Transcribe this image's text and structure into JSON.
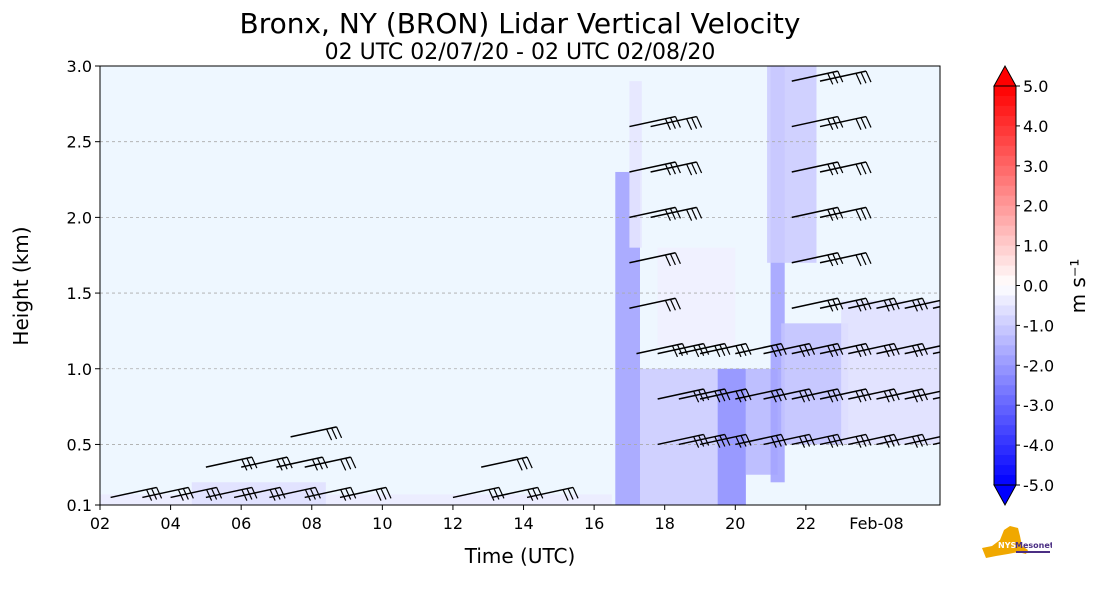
{
  "chart_data": {
    "type": "heatmap",
    "title": "Bronx, NY (BRON) Lidar Vertical Velocity",
    "subtitle": "02 UTC 02/07/20 - 02 UTC 02/08/20",
    "xlabel": "Time (UTC)",
    "ylabel": "Height (km)",
    "xlim": [
      2,
      25.8
    ],
    "ylim": [
      0.1,
      3.0
    ],
    "x_ticks": [
      2,
      4,
      6,
      8,
      10,
      12,
      14,
      16,
      18,
      20,
      22
    ],
    "x_tick_labels": [
      "02",
      "04",
      "06",
      "08",
      "10",
      "12",
      "14",
      "16",
      "18",
      "20",
      "22"
    ],
    "date_label": {
      "x": 24.0,
      "text": "Feb-08"
    },
    "y_ticks": [
      0.1,
      0.5,
      1.0,
      1.5,
      2.0,
      2.5,
      3.0
    ],
    "y_tick_labels": [
      "0.1",
      "0.5",
      "1.0",
      "1.5",
      "2.0",
      "2.5",
      "3.0"
    ],
    "grid": "horizontal dashed",
    "colorbar": {
      "label": "m s⁻¹",
      "range": [
        -5.0,
        5.0
      ],
      "ticks": [
        5.0,
        4.0,
        3.0,
        2.0,
        1.0,
        0.0,
        -1.0,
        -2.0,
        -3.0,
        -4.0,
        -5.0
      ],
      "tick_labels": [
        "5.0",
        "4.0",
        "3.0",
        "2.0",
        "1.0",
        "0.0",
        "-1.0",
        "-2.0",
        "-3.0",
        "-4.0",
        "-5.0"
      ],
      "colors": {
        "negative": "#0000ff",
        "zero": "#ffffff",
        "positive": "#ff0000"
      }
    },
    "background_color": "#eef7ff",
    "regions": [
      {
        "x": [
          2.0,
          16.5
        ],
        "y": [
          0.1,
          0.17
        ],
        "value": -0.4
      },
      {
        "x": [
          4.6,
          8.4
        ],
        "y": [
          0.1,
          0.25
        ],
        "value": -0.6
      },
      {
        "x": [
          16.6,
          17.3
        ],
        "y": [
          0.1,
          2.3
        ],
        "value": -1.8
      },
      {
        "x": [
          17.0,
          17.35
        ],
        "y": [
          1.8,
          2.9
        ],
        "value": -0.5
      },
      {
        "x": [
          17.3,
          19.5
        ],
        "y": [
          0.1,
          1.0
        ],
        "value": -1.0
      },
      {
        "x": [
          19.5,
          20.3
        ],
        "y": [
          0.1,
          1.0
        ],
        "value": -2.2
      },
      {
        "x": [
          20.3,
          21.2
        ],
        "y": [
          0.3,
          1.0
        ],
        "value": -1.4
      },
      {
        "x": [
          21.0,
          21.4
        ],
        "y": [
          0.25,
          3.0
        ],
        "value": -1.8
      },
      {
        "x": [
          20.9,
          22.3
        ],
        "y": [
          1.7,
          3.0
        ],
        "value": -1.0
      },
      {
        "x": [
          21.3,
          23.2
        ],
        "y": [
          0.5,
          1.3
        ],
        "value": -1.2
      },
      {
        "x": [
          23.0,
          25.8
        ],
        "y": [
          0.5,
          1.45
        ],
        "value": -0.6
      },
      {
        "x": [
          17.8,
          20.0
        ],
        "y": [
          1.15,
          1.8
        ],
        "value": -0.3
      }
    ],
    "wind_barb_rows": [
      {
        "y": 0.15,
        "x": [
          2.3,
          3.2,
          4.0,
          5.0,
          5.8,
          6.8,
          7.8,
          8.8,
          12.0,
          13.1,
          14.1
        ]
      },
      {
        "y": 0.35,
        "x": [
          5.0,
          6.0,
          7.0,
          7.8,
          12.8
        ]
      },
      {
        "y": 0.55,
        "x": [
          7.4
        ]
      },
      {
        "y": 0.5,
        "x": [
          17.8,
          18.4,
          19.0,
          20.0,
          20.8,
          21.6,
          22.4,
          23.2,
          24.0,
          24.8,
          25.6
        ]
      },
      {
        "y": 0.8,
        "x": [
          17.8,
          18.4,
          19.0,
          20.0,
          20.8,
          21.6,
          22.4,
          23.2,
          24.0,
          24.8,
          25.6
        ]
      },
      {
        "y": 1.1,
        "x": [
          17.2,
          17.8,
          18.4,
          19.0,
          20.0,
          20.8,
          21.6,
          22.4,
          23.2,
          24.0,
          24.8,
          25.6
        ]
      },
      {
        "y": 1.4,
        "x": [
          17.0,
          21.6,
          22.4,
          23.2,
          24.0,
          24.8,
          25.6
        ]
      },
      {
        "y": 1.7,
        "x": [
          17.0,
          21.6,
          22.4
        ]
      },
      {
        "y": 2.0,
        "x": [
          17.0,
          17.6,
          21.6,
          22.4
        ]
      },
      {
        "y": 2.3,
        "x": [
          17.0,
          17.6,
          21.6,
          22.4
        ]
      },
      {
        "y": 2.6,
        "x": [
          17.0,
          17.6,
          21.6,
          22.4
        ]
      },
      {
        "y": 2.9,
        "x": [
          21.6,
          22.4
        ]
      }
    ]
  }
}
